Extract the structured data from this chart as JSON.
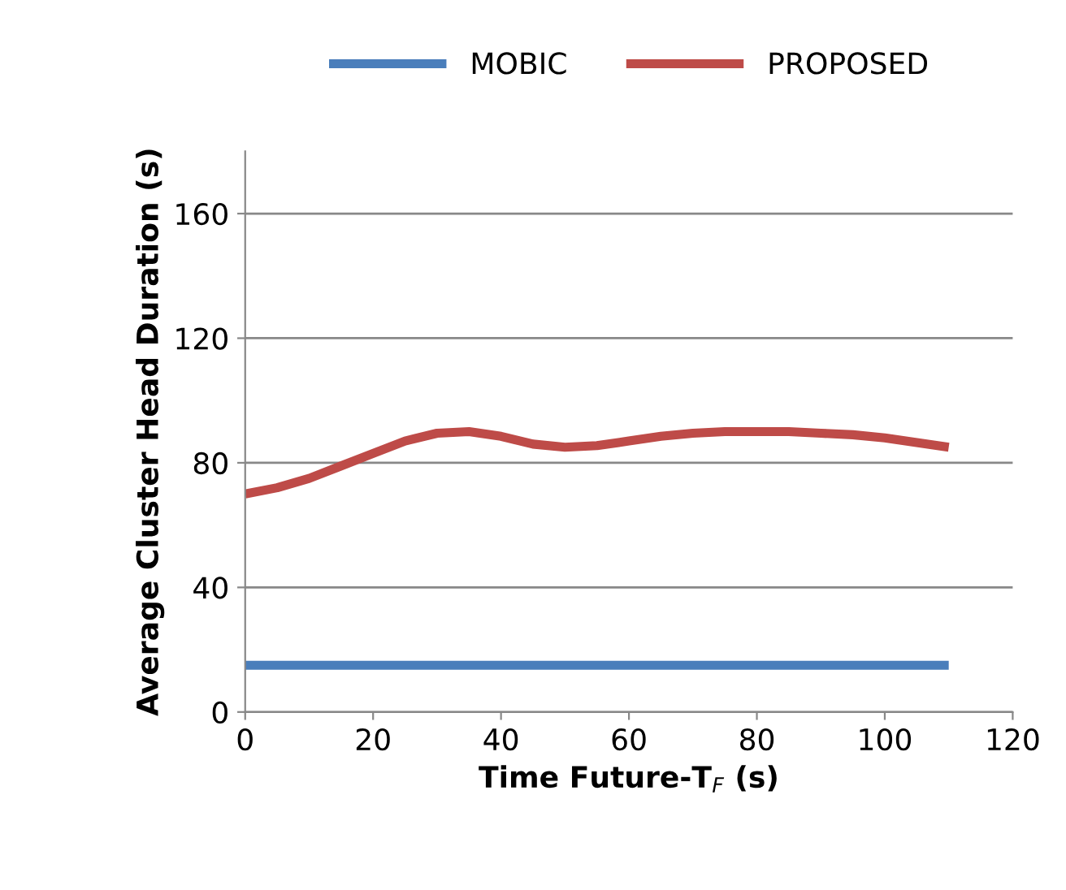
{
  "chart_data": {
    "type": "line",
    "xlabel": "Time Future-T$_{F}$ (s)",
    "ylabel": "Average Cluster Head Duration (s)",
    "series": [
      {
        "name": "MOBIC",
        "color": "#4a7ebb",
        "x": [
          0,
          10,
          20,
          30,
          40,
          50,
          60,
          70,
          80,
          90,
          100,
          110
        ],
        "values": [
          15,
          15,
          15,
          15,
          15,
          15,
          15,
          15,
          15,
          15,
          15,
          15
        ]
      },
      {
        "name": "PROPOSED",
        "color": "#be4b48",
        "x": [
          0,
          5,
          10,
          15,
          20,
          25,
          30,
          35,
          40,
          45,
          50,
          55,
          60,
          65,
          70,
          75,
          80,
          85,
          90,
          95,
          100,
          105,
          110
        ],
        "values": [
          70,
          72,
          75,
          79,
          83,
          87,
          89.5,
          90,
          88.5,
          86,
          85,
          85.5,
          87,
          88.5,
          89.5,
          90,
          90,
          90,
          89.5,
          89,
          88,
          86.5,
          85
        ]
      }
    ],
    "xlim": [
      0,
      120
    ],
    "xticks": [
      0,
      20,
      40,
      60,
      80,
      100,
      120
    ],
    "ylim": [
      0,
      180
    ],
    "yticks": [
      0,
      40,
      80,
      120,
      160
    ],
    "grid": "y",
    "legend": "top",
    "marker": "none",
    "line_style": "solid"
  }
}
